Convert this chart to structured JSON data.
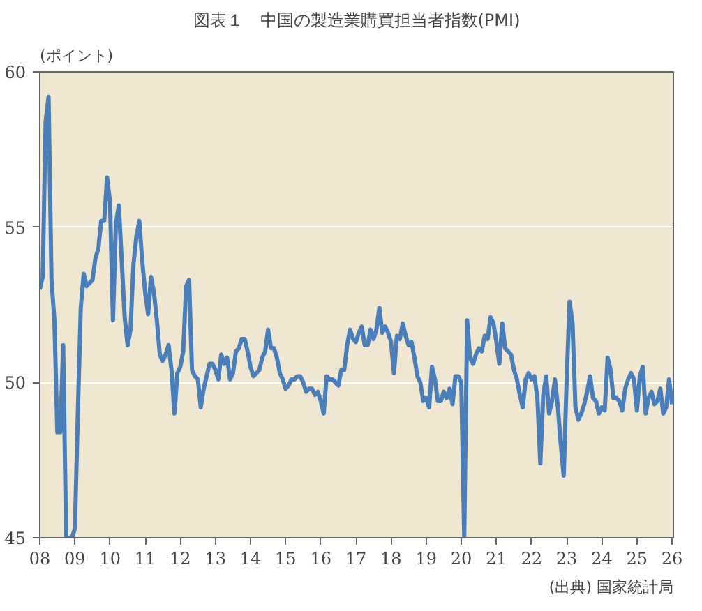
{
  "chart_data": {
    "type": "line",
    "title": "図表１　中国の製造業購買担当者指数(PMI)",
    "ylabel": "(ポイント)",
    "annotations": [
      "(出典) 国家統計局"
    ],
    "xlim": [
      "2008-01",
      "2026-01-15"
    ],
    "ylim": [
      45,
      60
    ],
    "yticks": [
      45,
      50,
      55,
      60
    ],
    "xticks": [
      {
        "value": "2008-01",
        "label": "08"
      },
      {
        "value": "2009-01",
        "label": "09"
      },
      {
        "value": "2010-01",
        "label": "10"
      },
      {
        "value": "2011-01",
        "label": "11"
      },
      {
        "value": "2012-01",
        "label": "12"
      },
      {
        "value": "2013-01",
        "label": "13"
      },
      {
        "value": "2014-01",
        "label": "14"
      },
      {
        "value": "2015-01",
        "label": "15"
      },
      {
        "value": "2016-01",
        "label": "16"
      },
      {
        "value": "2017-01",
        "label": "17"
      },
      {
        "value": "2018-01",
        "label": "18"
      },
      {
        "value": "2019-01",
        "label": "19"
      },
      {
        "value": "2020-01",
        "label": "20"
      },
      {
        "value": "2021-01",
        "label": "21"
      },
      {
        "value": "2022-01",
        "label": "22"
      },
      {
        "value": "2023-01",
        "label": "23"
      },
      {
        "value": "2024-01",
        "label": "24"
      },
      {
        "value": "2025-01",
        "label": "25"
      },
      {
        "value": "2026-01",
        "label": "26"
      }
    ],
    "x": [
      "2008-01",
      "2008-02",
      "2008-03",
      "2008-04",
      "2008-05",
      "2008-06",
      "2008-07",
      "2008-08",
      "2008-09",
      "2008-10",
      "2008-11",
      "2008-12",
      "2009-01",
      "2009-02",
      "2009-03",
      "2009-04",
      "2009-05",
      "2009-06",
      "2009-07",
      "2009-08",
      "2009-09",
      "2009-10",
      "2009-11",
      "2009-12",
      "2010-01",
      "2010-02",
      "2010-03",
      "2010-04",
      "2010-05",
      "2010-06",
      "2010-07",
      "2010-08",
      "2010-09",
      "2010-10",
      "2010-11",
      "2010-12",
      "2011-01",
      "2011-02",
      "2011-03",
      "2011-04",
      "2011-05",
      "2011-06",
      "2011-07",
      "2011-08",
      "2011-09",
      "2011-10",
      "2011-11",
      "2011-12",
      "2012-01",
      "2012-02",
      "2012-03",
      "2012-04",
      "2012-05",
      "2012-06",
      "2012-07",
      "2012-08",
      "2012-09",
      "2012-10",
      "2012-11",
      "2012-12",
      "2013-01",
      "2013-02",
      "2013-03",
      "2013-04",
      "2013-05",
      "2013-06",
      "2013-07",
      "2013-08",
      "2013-09",
      "2013-10",
      "2013-11",
      "2013-12",
      "2014-01",
      "2014-02",
      "2014-03",
      "2014-04",
      "2014-05",
      "2014-06",
      "2014-07",
      "2014-08",
      "2014-09",
      "2014-10",
      "2014-11",
      "2014-12",
      "2015-01",
      "2015-02",
      "2015-03",
      "2015-04",
      "2015-05",
      "2015-06",
      "2015-07",
      "2015-08",
      "2015-09",
      "2015-10",
      "2015-11",
      "2015-12",
      "2016-01",
      "2016-02",
      "2016-03",
      "2016-04",
      "2016-05",
      "2016-06",
      "2016-07",
      "2016-08",
      "2016-09",
      "2016-10",
      "2016-11",
      "2016-12",
      "2017-01",
      "2017-02",
      "2017-03",
      "2017-04",
      "2017-05",
      "2017-06",
      "2017-07",
      "2017-08",
      "2017-09",
      "2017-10",
      "2017-11",
      "2017-12",
      "2018-01",
      "2018-02",
      "2018-03",
      "2018-04",
      "2018-05",
      "2018-06",
      "2018-07",
      "2018-08",
      "2018-09",
      "2018-10",
      "2018-11",
      "2018-12",
      "2019-01",
      "2019-02",
      "2019-03",
      "2019-04",
      "2019-05",
      "2019-06",
      "2019-07",
      "2019-08",
      "2019-09",
      "2019-10",
      "2019-11",
      "2019-12",
      "2020-01",
      "2020-02",
      "2020-03",
      "2020-04",
      "2020-05",
      "2020-06",
      "2020-07",
      "2020-08",
      "2020-09",
      "2020-10",
      "2020-11",
      "2020-12",
      "2021-01",
      "2021-02",
      "2021-03",
      "2021-04",
      "2021-05",
      "2021-06",
      "2021-07",
      "2021-08",
      "2021-09",
      "2021-10",
      "2021-11",
      "2021-12",
      "2022-01",
      "2022-02",
      "2022-03",
      "2022-04",
      "2022-05",
      "2022-06",
      "2022-07",
      "2022-08",
      "2022-09",
      "2022-10",
      "2022-11",
      "2022-12",
      "2023-01",
      "2023-02",
      "2023-03",
      "2023-04",
      "2023-05",
      "2023-06",
      "2023-07",
      "2023-08",
      "2023-09",
      "2023-10",
      "2023-11",
      "2023-12",
      "2024-01",
      "2024-02",
      "2024-03",
      "2024-04",
      "2024-05",
      "2024-06",
      "2024-07",
      "2024-08",
      "2024-09",
      "2024-10",
      "2024-11",
      "2024-12",
      "2025-01",
      "2025-02",
      "2025-03",
      "2025-04",
      "2025-05",
      "2025-06",
      "2025-07",
      "2025-08",
      "2025-09",
      "2025-10",
      "2025-11",
      "2025-12",
      "2026-01"
    ],
    "grid": "y",
    "marker": "none",
    "line_style": "solid",
    "series": [
      {
        "color": "#4a7ebb",
        "values": [
          53.0,
          53.4,
          58.4,
          59.2,
          53.3,
          52.0,
          48.4,
          48.4,
          51.2,
          45,
          45,
          45,
          45.3,
          49.0,
          52.4,
          53.5,
          53.1,
          53.2,
          53.3,
          54.0,
          54.3,
          55.2,
          55.2,
          56.6,
          55.8,
          52.0,
          55.1,
          55.7,
          53.9,
          52.1,
          51.2,
          51.7,
          53.8,
          54.7,
          55.2,
          53.9,
          52.9,
          52.2,
          53.4,
          52.9,
          52.0,
          50.9,
          50.7,
          50.9,
          51.2,
          50.4,
          49.0,
          50.3,
          50.5,
          51.0,
          53.1,
          53.3,
          50.4,
          50.2,
          50.1,
          49.2,
          49.8,
          50.2,
          50.6,
          50.6,
          50.4,
          50.1,
          50.9,
          50.6,
          50.8,
          50.1,
          50.3,
          51.0,
          51.1,
          51.4,
          51.4,
          51.0,
          50.5,
          50.2,
          50.3,
          50.4,
          50.8,
          51.0,
          51.7,
          51.1,
          51.1,
          50.8,
          50.3,
          50.1,
          49.8,
          49.9,
          50.1,
          50.1,
          50.2,
          50.2,
          50.0,
          49.7,
          49.8,
          49.8,
          49.6,
          49.7,
          49.4,
          49.0,
          50.2,
          50.1,
          50.1,
          50.0,
          49.9,
          50.4,
          50.4,
          51.2,
          51.7,
          51.4,
          51.3,
          51.6,
          51.8,
          51.2,
          51.2,
          51.7,
          51.4,
          51.7,
          52.4,
          51.6,
          51.8,
          51.6,
          51.3,
          50.3,
          51.5,
          51.4,
          51.9,
          51.5,
          51.2,
          51.3,
          50.8,
          50.2,
          50.0,
          49.4,
          49.5,
          49.2,
          50.5,
          50.1,
          49.4,
          49.4,
          49.7,
          49.5,
          49.8,
          49.3,
          50.2,
          50.2,
          50.0,
          45,
          52.0,
          50.8,
          50.6,
          50.9,
          51.1,
          51.0,
          51.5,
          51.4,
          52.1,
          51.9,
          51.3,
          50.6,
          51.9,
          51.1,
          51.0,
          50.9,
          50.4,
          50.1,
          49.6,
          49.2,
          50.1,
          50.3,
          50.1,
          50.2,
          49.5,
          47.4,
          49.6,
          50.2,
          49.0,
          49.4,
          50.1,
          49.2,
          48.0,
          47.0,
          50.1,
          52.6,
          51.9,
          49.2,
          48.8,
          49.0,
          49.3,
          49.7,
          50.2,
          49.5,
          49.4,
          49.0,
          49.2,
          49.1,
          50.8,
          50.4,
          49.5,
          49.5,
          49.4,
          49.1,
          49.8,
          50.1,
          50.3,
          50.1,
          49.1,
          50.2,
          50.5,
          49.0,
          49.5,
          49.7,
          49.3,
          49.4,
          49.8,
          49.0,
          49.2,
          50.1,
          49.3
        ]
      }
    ]
  }
}
